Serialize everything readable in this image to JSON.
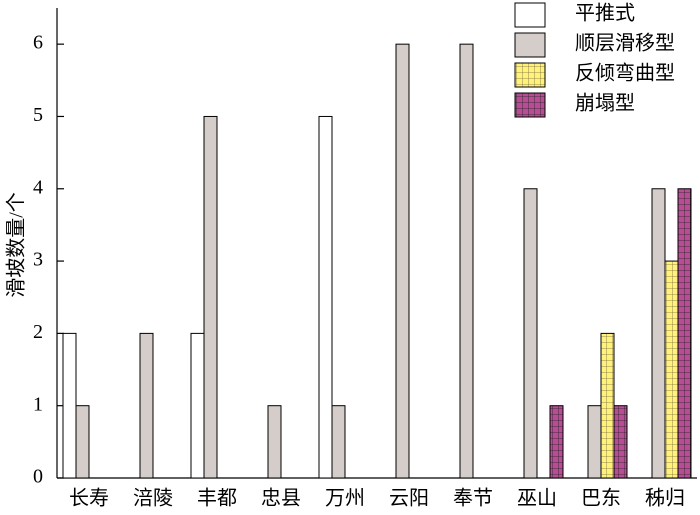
{
  "chart_data": {
    "type": "bar",
    "ylabel": "滑坡数量/个",
    "categories": [
      "长寿",
      "涪陵",
      "丰都",
      "忠县",
      "万州",
      "云阳",
      "奉节",
      "巫山",
      "巴东",
      "秭归"
    ],
    "series": [
      {
        "name": "平推式",
        "color": "#ffffff",
        "values": [
          2,
          0,
          2,
          0,
          5,
          0,
          0,
          0,
          0,
          0
        ]
      },
      {
        "name": "顺层滑移型",
        "color": "#d5cdc9",
        "values": [
          1,
          2,
          5,
          1,
          1,
          6,
          6,
          4,
          1,
          4
        ]
      },
      {
        "name": "反倾弯曲型",
        "color": "#fff27a",
        "pattern": "grid",
        "values": [
          0,
          0,
          0,
          0,
          0,
          0,
          0,
          0,
          2,
          3
        ]
      },
      {
        "name": "崩塌型",
        "color": "#b84d96",
        "pattern": "grid",
        "values": [
          0,
          0,
          0,
          0,
          0,
          0,
          0,
          1,
          1,
          4
        ]
      }
    ],
    "ylim": [
      0,
      6.5
    ],
    "yticks": [
      0,
      1,
      2,
      3,
      4,
      5,
      6
    ],
    "legend": "upper right"
  }
}
